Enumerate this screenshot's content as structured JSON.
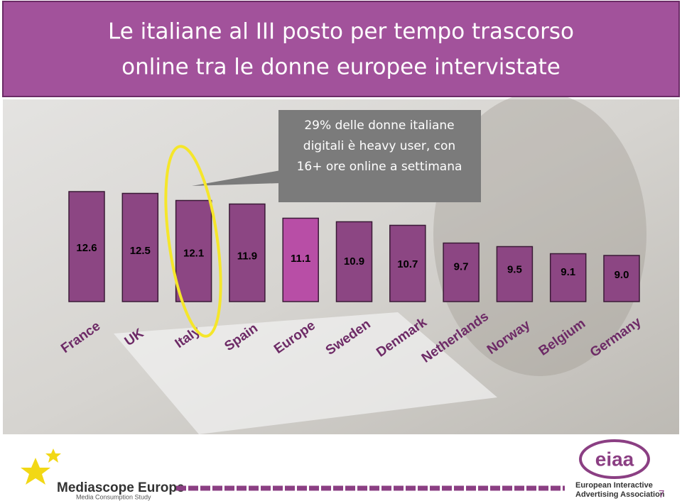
{
  "chart_data": {
    "type": "bar",
    "title": [
      "Le italiane al III posto per tempo trascorso",
      "online tra le donne europee intervistate"
    ],
    "annotation": [
      "29% delle donne italiane",
      "digitali è heavy user, con",
      "16+ ore online a settimana"
    ],
    "categories": [
      "France",
      "UK",
      "Italy",
      "Spain",
      "Europe",
      "Sweden",
      "Denmark",
      "Netherlands",
      "Norway",
      "Belgium",
      "Germany"
    ],
    "values": [
      12.6,
      12.5,
      12.1,
      11.9,
      11.1,
      10.9,
      10.7,
      9.7,
      9.5,
      9.1,
      9.0
    ],
    "value_labels": [
      "12.6",
      "12.5",
      "12.1",
      "11.9",
      "11.1",
      "10.9",
      "10.7",
      "9.7",
      "9.5",
      "9.1",
      "9.0"
    ],
    "color": "#8c4683",
    "highlight_color": "#b84ea6",
    "highlight_category": "Europe",
    "ylim": [
      6.4,
      13
    ]
  },
  "footer": {
    "brand": "Mediascope Europe",
    "study": "Media Consumption Study",
    "association": [
      "European Interactive",
      "Advertising Association"
    ],
    "page_number": "7"
  }
}
